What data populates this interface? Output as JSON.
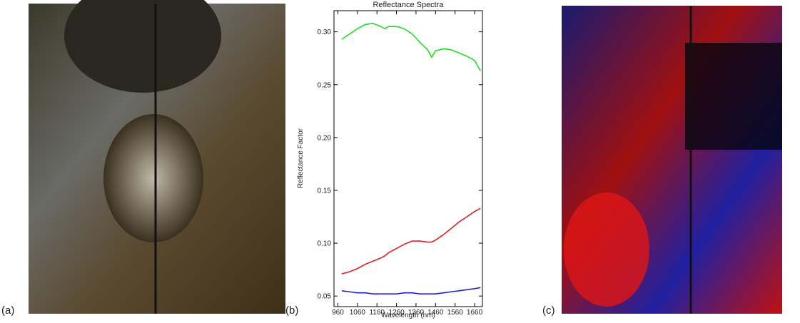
{
  "panel_labels": [
    "(a)",
    "(b)",
    "(c)"
  ],
  "chart_data": {
    "type": "line",
    "title": "Reflectance Spectra",
    "x_label": "Wavelength (nm)",
    "y_label": "Reflectance Factor",
    "x": [
      980,
      1020,
      1060,
      1100,
      1140,
      1180,
      1200,
      1220,
      1260,
      1300,
      1340,
      1380,
      1420,
      1440,
      1460,
      1500,
      1540,
      1580,
      1620,
      1660,
      1690
    ],
    "series": [
      {
        "color": "#22dd22",
        "values": [
          0.293,
          0.298,
          0.303,
          0.307,
          0.308,
          0.305,
          0.303,
          0.305,
          0.305,
          0.303,
          0.298,
          0.29,
          0.283,
          0.276,
          0.282,
          0.284,
          0.283,
          0.28,
          0.277,
          0.273,
          0.263
        ]
      },
      {
        "color": "#e02020",
        "values": [
          0.071,
          0.073,
          0.076,
          0.08,
          0.083,
          0.086,
          0.088,
          0.091,
          0.095,
          0.099,
          0.102,
          0.102,
          0.101,
          0.101,
          0.103,
          0.108,
          0.114,
          0.12,
          0.125,
          0.13,
          0.133
        ]
      },
      {
        "color": "#2020d0",
        "values": [
          0.055,
          0.054,
          0.053,
          0.053,
          0.052,
          0.052,
          0.052,
          0.052,
          0.052,
          0.053,
          0.053,
          0.052,
          0.052,
          0.052,
          0.052,
          0.053,
          0.054,
          0.055,
          0.056,
          0.057,
          0.058
        ]
      }
    ],
    "xlim": [
      940,
      1700
    ],
    "xticks": [
      960,
      1060,
      1160,
      1260,
      1360,
      1460,
      1560,
      1660
    ],
    "ylim": [
      0.04,
      0.32
    ],
    "yticks": [
      0.05,
      {
        "value": 0.1,
        "label": "0.10"
      },
      0.15,
      {
        "value": 0.2,
        "label": "0.20"
      },
      0.25,
      {
        "value": 0.3,
        "label": "0.30"
      }
    ]
  }
}
